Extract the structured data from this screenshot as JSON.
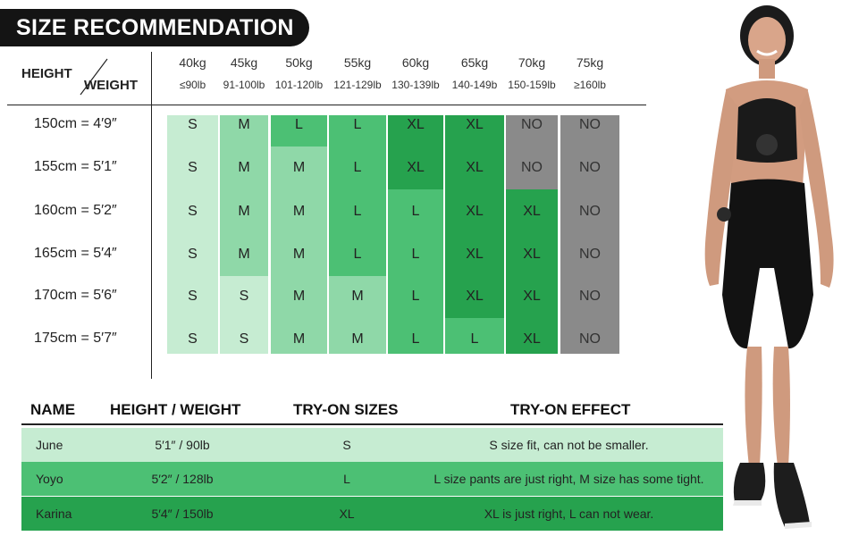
{
  "title": "SIZE RECOMMENDATION",
  "corner": {
    "height_label": "HEIGHT",
    "weight_label": "WEIGHT"
  },
  "weights": [
    {
      "kg": "40kg",
      "lb": "≤90lb"
    },
    {
      "kg": "45kg",
      "lb": "91-100lb"
    },
    {
      "kg": "50kg",
      "lb": "101-120lb"
    },
    {
      "kg": "55kg",
      "lb": "121-129lb"
    },
    {
      "kg": "60kg",
      "lb": "130-139lb"
    },
    {
      "kg": "65kg",
      "lb": "140-149b"
    },
    {
      "kg": "70kg",
      "lb": "150-159lb"
    },
    {
      "kg": "75kg",
      "lb": "≥160lb"
    }
  ],
  "heights": [
    "150cm = 4′9″",
    "155cm = 5′1″",
    "160cm = 5′2″",
    "165cm = 5′4″",
    "170cm = 5′6″",
    "175cm = 5′7″"
  ],
  "sizes": [
    [
      "S",
      "M",
      "L",
      "L",
      "XL",
      "XL",
      "NO",
      "NO"
    ],
    [
      "S",
      "M",
      "M",
      "L",
      "XL",
      "XL",
      "NO",
      "NO"
    ],
    [
      "S",
      "M",
      "M",
      "L",
      "L",
      "XL",
      "XL",
      "NO"
    ],
    [
      "S",
      "M",
      "M",
      "L",
      "L",
      "XL",
      "XL",
      "NO"
    ],
    [
      "S",
      "S",
      "M",
      "M",
      "L",
      "XL",
      "XL",
      "NO"
    ],
    [
      "S",
      "S",
      "M",
      "M",
      "L",
      "L",
      "XL",
      "NO"
    ]
  ],
  "size_colors": {
    "S": "#c6ecd2",
    "M": "#8fd8a8",
    "L": "#4cc074",
    "XL": "#26a24e",
    "NO": "#8a8a8a"
  },
  "tryon": {
    "headers": [
      "NAME",
      "HEIGHT / WEIGHT",
      "TRY-ON SIZES",
      "TRY-ON EFFECT"
    ],
    "rows": [
      {
        "name": "June",
        "hw": "5′1″ / 90lb",
        "size": "S",
        "effect": "S size fit, can not be smaller.",
        "color": "#c6ecd2"
      },
      {
        "name": "Yoyo",
        "hw": "5′2″ / 128lb",
        "size": "L",
        "effect": "L size pants are just right, M size has some tight.",
        "color": "#4cc074"
      },
      {
        "name": "Karina",
        "hw": "5′4″ / 150lb",
        "size": "XL",
        "effect": "XL is just right, L can not wear.",
        "color": "#26a24e"
      }
    ]
  }
}
